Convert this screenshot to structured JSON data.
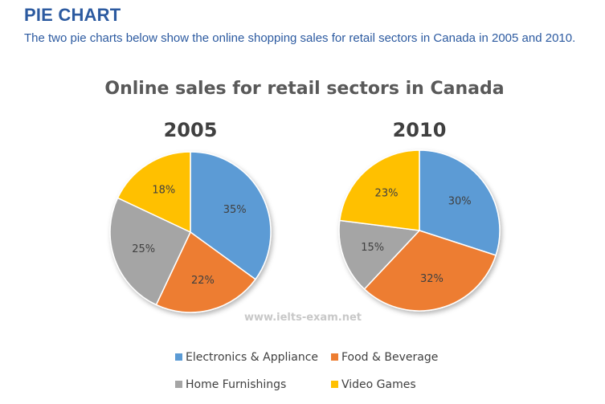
{
  "header": {
    "heading": "PIE CHART",
    "intro": "The two pie charts below show the online shopping sales for retail sectors in Canada in 2005 and 2010."
  },
  "watermark": "www.ielts-exam.net",
  "colors": {
    "electronics": "#5b9bd5",
    "food": "#ed7d31",
    "home": "#a5a5a5",
    "games": "#ffc000"
  },
  "chart_data": {
    "type": "pie",
    "title": "Online sales for retail sectors in Canada",
    "categories": [
      "Electronics & Appliance",
      "Food & Beverage",
      "Home Furnishings",
      "Video Games"
    ],
    "pies": [
      {
        "name": "2005",
        "values": [
          35,
          22,
          25,
          18
        ],
        "labels": [
          "35%",
          "22%",
          "25%",
          "18%"
        ]
      },
      {
        "name": "2010",
        "values": [
          30,
          32,
          15,
          23
        ],
        "labels": [
          "30%",
          "32%",
          "15%",
          "23%"
        ]
      }
    ],
    "legend_position": "bottom"
  }
}
